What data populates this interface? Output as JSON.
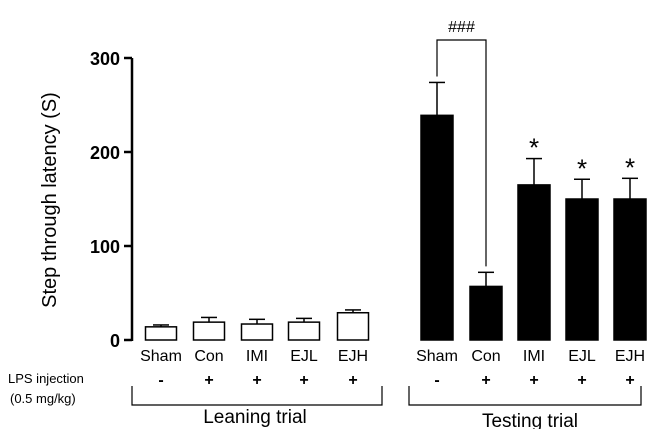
{
  "chart_data": {
    "type": "bar",
    "ylabel": "Step through latency (S)",
    "ylim": [
      0,
      300
    ],
    "yticks": [
      0,
      100,
      200,
      300
    ],
    "groups": [
      {
        "name": "Leaning trial",
        "fill": "#ffffff",
        "categories": [
          "Sham",
          "Con",
          "IMI",
          "EJL",
          "EJH"
        ],
        "values": [
          14,
          19,
          17,
          19,
          29
        ],
        "errors": [
          2,
          5,
          5,
          4,
          3
        ],
        "lps": [
          "-",
          "+",
          "+",
          "+",
          "+"
        ],
        "significance": [
          "",
          "",
          "",
          "",
          ""
        ]
      },
      {
        "name": "Testing trial",
        "fill": "#000000",
        "categories": [
          "Sham",
          "Con",
          "IMI",
          "EJL",
          "EJH"
        ],
        "values": [
          239,
          57,
          165,
          150,
          150
        ],
        "errors": [
          35,
          15,
          28,
          21,
          22
        ],
        "lps": [
          "-",
          "+",
          "+",
          "+",
          "+"
        ],
        "significance": [
          "",
          "",
          "*",
          "*",
          "*"
        ]
      }
    ],
    "comparison": {
      "label": "###",
      "group": 1,
      "from": 0,
      "to": 1
    },
    "row_label_lines": [
      "LPS injection",
      "(0.5 mg/kg)"
    ]
  }
}
